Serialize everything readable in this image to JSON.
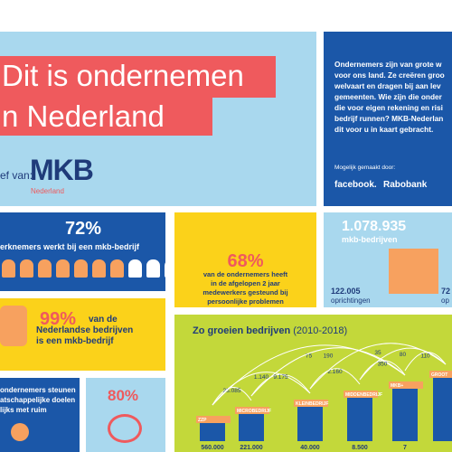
{
  "hero": {
    "line1": "Dit is ondernemen",
    "line2": "n Nederland",
    "by": "ef van:",
    "logo": "MKB",
    "logo_sub": "Nederland"
  },
  "intro": {
    "lines": [
      "Ondernemers zijn van grote w",
      "voor ons land. Ze creëren groo",
      "welvaart en dragen bij aan lev",
      "gemeenten. Wie zijn die onder",
      "die voor eigen rekening en risi",
      "bedrijf runnen? MKB-Nederlan",
      "dit voor u in kaart gebracht."
    ],
    "made_by": "Mogelijk gemaakt door:",
    "sponsor1": "facebook.",
    "sponsor2": "Rabobank"
  },
  "workers": {
    "percent": "72%",
    "text": "erknemers werkt bij een mkb-bedrijf"
  },
  "support": {
    "percent": "68%",
    "text": [
      "van de ondernemers heeft",
      "in de afgelopen 2 jaar",
      "medewerkers gesteund bij",
      "persoonlijke problemen"
    ]
  },
  "count": {
    "number": "1.078.935",
    "label": "mkb-bedrijven",
    "starts": "122.005",
    "starts_label": "oprichtingen",
    "right_number": "72",
    "right_label": "op"
  },
  "share": {
    "percent": "99%",
    "text": [
      "van de",
      "Nederlandse bedrijven",
      "is een mkb-bedrijf"
    ]
  },
  "growth": {
    "title": "Zo groeien bedrijven",
    "period": "(2010-2018)",
    "arc_labels": [
      "28.085",
      "1.140",
      "9.175",
      "75",
      "190",
      "2.160",
      "35",
      "350",
      "80",
      "110"
    ],
    "sizes": [
      "ZZP",
      "MICROBEDRIJF",
      "KLEINBEDRIJF",
      "MIDDENBEDRIJF",
      "MKB+",
      "GROOT"
    ],
    "totals": [
      "560.000",
      "221.000",
      "40.000",
      "8.500",
      "7"
    ]
  },
  "society": {
    "text": [
      "ondernemers steunen",
      "atschappelijke doelen",
      "lijks met ruim"
    ]
  },
  "donate": {
    "percent": "80%"
  }
}
